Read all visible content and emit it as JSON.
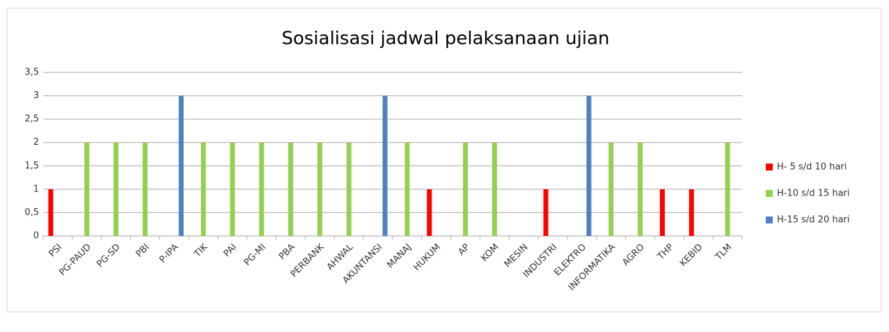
{
  "chart_data": {
    "type": "bar",
    "title": "Sosialisasi jadwal pelaksanaan ujian",
    "categories": [
      "PSI",
      "PG-PAUD",
      "PG-SD",
      "PBI",
      "P-IPA",
      "TIK",
      "PAI",
      "PG-MI",
      "PBA",
      "PERBANK",
      "AHWAL",
      "AKUNTANSI",
      "MANAJ",
      "HUKUM",
      "AP",
      "KOM",
      "MESIN",
      "INDUSTRI",
      "ELEKTRO",
      "INFORMATIKA",
      "AGRO",
      "THP",
      "KEBID",
      "TLM"
    ],
    "series": [
      {
        "name": "H- 5 s/d 10 hari",
        "color": "#ff0000",
        "values": [
          1,
          null,
          null,
          null,
          null,
          null,
          null,
          null,
          null,
          null,
          null,
          null,
          null,
          1,
          null,
          null,
          null,
          1,
          null,
          null,
          null,
          1,
          1,
          null
        ]
      },
      {
        "name": "H-10 s/d 15 hari",
        "color": "#92d050",
        "values": [
          null,
          2,
          2,
          2,
          null,
          2,
          2,
          2,
          2,
          2,
          2,
          null,
          2,
          null,
          2,
          2,
          null,
          null,
          null,
          2,
          2,
          null,
          null,
          2
        ]
      },
      {
        "name": "H-15 s/d 20 hari",
        "color": "#4f81bd",
        "values": [
          null,
          null,
          null,
          null,
          3,
          null,
          null,
          null,
          null,
          null,
          null,
          3,
          null,
          null,
          null,
          null,
          null,
          null,
          3,
          null,
          null,
          null,
          null,
          null
        ]
      }
    ],
    "ylim": [
      0,
      3.5
    ],
    "yticks": [
      0,
      {
        "value": 0.5,
        "label": "0,5"
      },
      1,
      {
        "value": 1.5,
        "label": "1,5"
      },
      2,
      {
        "value": 2.5,
        "label": "2,5"
      },
      3,
      {
        "value": 3.5,
        "label": "3,5"
      }
    ],
    "grid": true,
    "legend": "right"
  }
}
